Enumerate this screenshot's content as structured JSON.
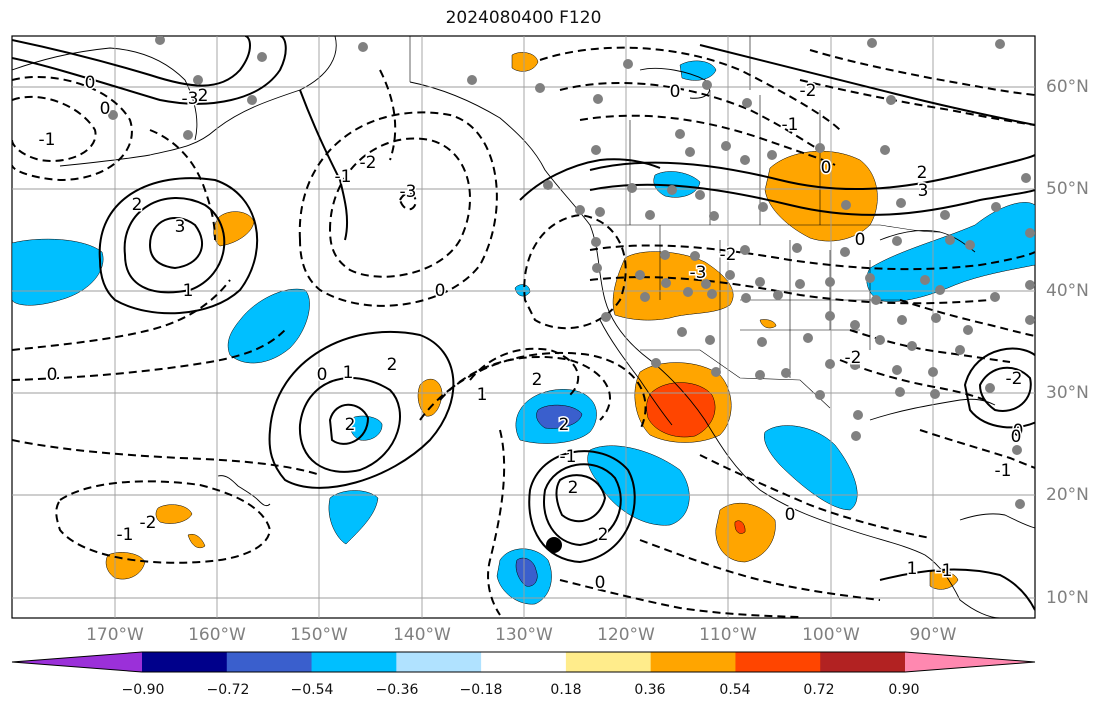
{
  "title": "2024080400 F120",
  "lat_labels": [
    "60°N",
    "50°N",
    "40°N",
    "30°N",
    "20°N",
    "10°N"
  ],
  "lon_labels": [
    "170°W",
    "160°W",
    "150°W",
    "140°W",
    "130°W",
    "120°W",
    "110°W",
    "100°W",
    "90°W"
  ],
  "colorbar": {
    "tick_labels": [
      "−0.90",
      "−0.72",
      "−0.54",
      "−0.36",
      "−0.18",
      "0.18",
      "0.36",
      "0.54",
      "0.72",
      "0.90"
    ],
    "colors": [
      "#9b30d9",
      "#00008b",
      "#3a5fcd",
      "#00bfff",
      "#b0e2ff",
      "#ffffff",
      "#ffec8b",
      "#ffa500",
      "#ff4500",
      "#b22222",
      "#ff88b0"
    ]
  },
  "contour_labels": [
    "0",
    "0",
    "-1",
    "-2",
    "-3",
    "3",
    "2",
    "1",
    "0",
    "-1",
    "-2",
    "2",
    "2",
    "1",
    "0",
    "-1",
    "-3",
    "-2",
    "0",
    "1",
    "2",
    "-1",
    "2",
    "0",
    "-1",
    "-2",
    "0",
    "-2",
    "-3",
    "-2",
    "0",
    "2",
    "3",
    "-2",
    "0",
    "-1",
    "0",
    "1",
    "-1",
    "0",
    "2",
    "2",
    "0"
  ]
}
